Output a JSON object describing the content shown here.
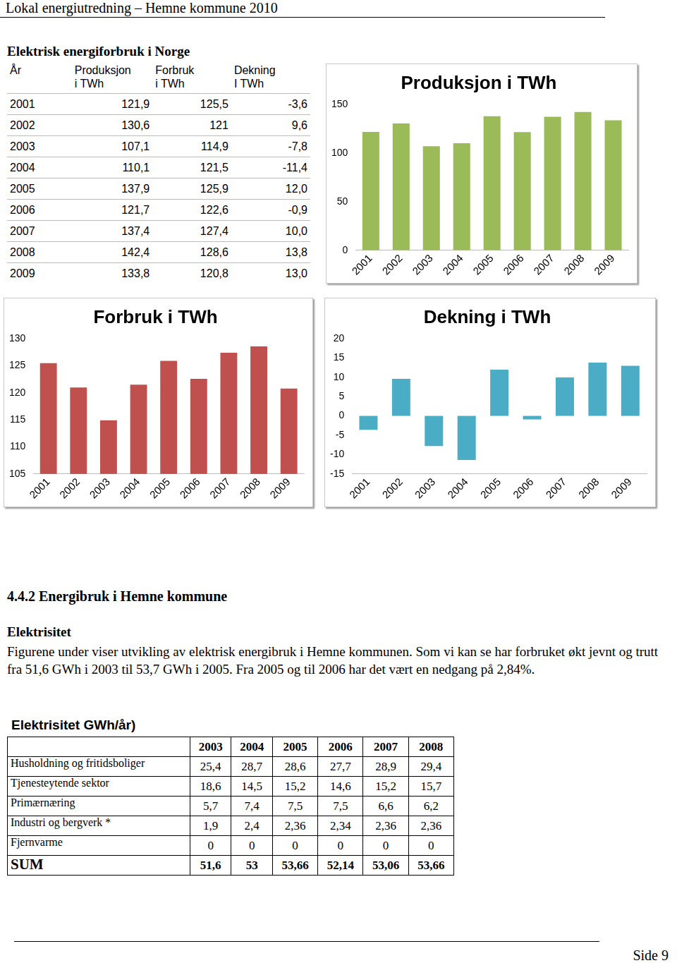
{
  "header": {
    "title": "Lokal energiutredning – Hemne kommune 2010"
  },
  "heading": {
    "title": "Elektrisk energiforbruk i Norge"
  },
  "table1": {
    "columns": [
      "År",
      "Produksjon\ni TWh",
      "Forbruk\ni TWh",
      "Dekning\nI TWh"
    ],
    "rows": [
      [
        "2001",
        "121,9",
        "125,5",
        "-3,6"
      ],
      [
        "2002",
        "130,6",
        "121",
        "9,6"
      ],
      [
        "2003",
        "107,1",
        "114,9",
        "-7,8"
      ],
      [
        "2004",
        "110,1",
        "121,5",
        "-11,4"
      ],
      [
        "2005",
        "137,9",
        "125,9",
        "12,0"
      ],
      [
        "2006",
        "121,7",
        "122,6",
        "-0,9"
      ],
      [
        "2007",
        "137,4",
        "127,4",
        "10,0"
      ],
      [
        "2008",
        "142,4",
        "128,6",
        "13,8"
      ],
      [
        "2009",
        "133,8",
        "120,8",
        "13,0"
      ]
    ]
  },
  "chart_data": [
    {
      "type": "bar",
      "title": "Produksjon i TWh",
      "categories": [
        "2001",
        "2002",
        "2003",
        "2004",
        "2005",
        "2006",
        "2007",
        "2008",
        "2009"
      ],
      "values": [
        121.9,
        130.6,
        107.1,
        110.1,
        137.9,
        121.7,
        137.4,
        142.4,
        133.8
      ],
      "color": "#9bbb59",
      "ylim": [
        0,
        150
      ],
      "yticks": [
        0,
        50,
        100,
        150
      ],
      "grid": false
    },
    {
      "type": "bar",
      "title": "Forbruk i TWh",
      "categories": [
        "2001",
        "2002",
        "2003",
        "2004",
        "2005",
        "2006",
        "2007",
        "2008",
        "2009"
      ],
      "values": [
        125.5,
        121,
        114.9,
        121.5,
        125.9,
        122.6,
        127.4,
        128.6,
        120.8
      ],
      "color": "#c0504d",
      "ylim": [
        105,
        130
      ],
      "yticks": [
        105,
        110,
        115,
        120,
        125,
        130
      ],
      "grid": false
    },
    {
      "type": "bar",
      "title": "Dekning i TWh",
      "categories": [
        "2001",
        "2002",
        "2003",
        "2004",
        "2005",
        "2006",
        "2007",
        "2008",
        "2009"
      ],
      "values": [
        -3.6,
        9.6,
        -7.8,
        -11.4,
        12.0,
        -0.9,
        10.0,
        13.8,
        13.0
      ],
      "color": "#4bacc6",
      "ylim": [
        -15,
        20
      ],
      "yticks": [
        -15,
        -10,
        -5,
        0,
        5,
        10,
        15,
        20
      ],
      "grid": false
    }
  ],
  "section": {
    "title": "4.4.2 Energibruk i Hemne kommune",
    "subtitle": "Elektrisitet",
    "paragraph": "Figurene under viser utvikling av elektrisk energibruk i Hemne kommunen. Som vi kan se har forbruket økt jevnt og trutt fra 51,6 GWh i 2003 til 53,7 GWh i 2005. Fra 2005 og til 2006 har det vært en nedgang på 2,84%."
  },
  "table2": {
    "caption": "Elektrisitet GWh/år)",
    "columns": [
      "2003",
      "2004",
      "2005",
      "2006",
      "2007",
      "2008"
    ],
    "rows": [
      {
        "label": "Husholdning og fritidsboliger",
        "values": [
          "25,4",
          "28,7",
          "28,6",
          "27,7",
          "28,9",
          "29,4"
        ]
      },
      {
        "label": "Tjenesteytende sektor",
        "values": [
          "18,6",
          "14,5",
          "15,2",
          "14,6",
          "15,2",
          "15,7"
        ]
      },
      {
        "label": "Primærnæring",
        "values": [
          "5,7",
          "7,4",
          "7,5",
          "7,5",
          "6,6",
          "6,2"
        ]
      },
      {
        "label": "Industri og bergverk *",
        "values": [
          "1,9",
          "2,4",
          "2,36",
          "2,34",
          "2,36",
          "2,36"
        ]
      },
      {
        "label": "Fjernvarme",
        "values": [
          "0",
          "0",
          "0",
          "0",
          "0",
          "0"
        ]
      }
    ],
    "sum": {
      "label": "SUM",
      "values": [
        "51,6",
        "53",
        "53,66",
        "52,14",
        "53,06",
        "53,66"
      ]
    }
  },
  "footer": {
    "page": "Side 9"
  }
}
